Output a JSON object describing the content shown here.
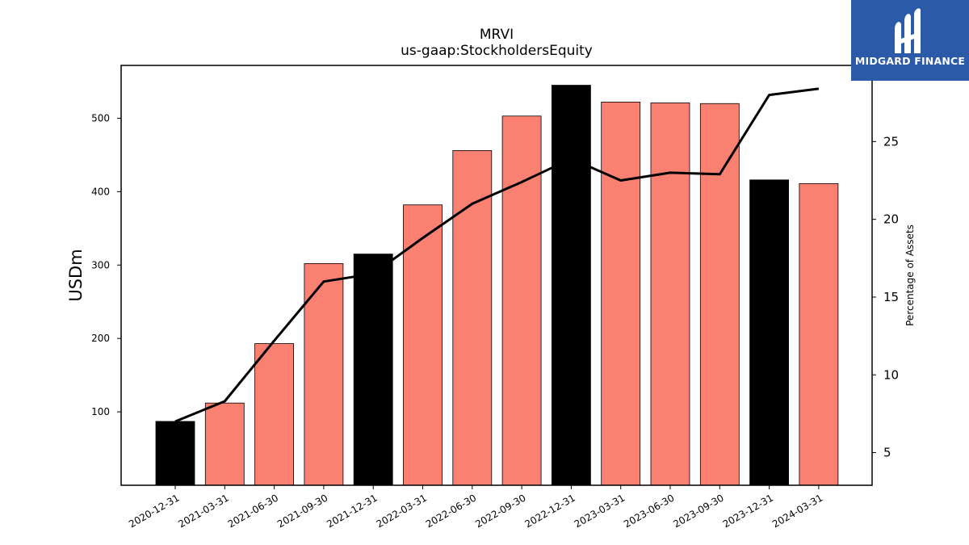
{
  "chart_data": {
    "type": "bar",
    "title": "MRVI",
    "subtitle": "us-gaap:StockholdersEquity",
    "ylabel": "USDm",
    "y2label": "Percentage of Assets",
    "categories": [
      "2020-12-31",
      "2021-03-31",
      "2021-06-30",
      "2021-09-30",
      "2021-12-31",
      "2022-03-31",
      "2022-06-30",
      "2022-09-30",
      "2022-12-31",
      "2023-03-31",
      "2023-06-30",
      "2023-09-30",
      "2023-12-31",
      "2024-03-31"
    ],
    "series": [
      {
        "type": "bar",
        "values": [
          87,
          112,
          193,
          302,
          315,
          382,
          456,
          503,
          545,
          522,
          521,
          520,
          416,
          411
        ],
        "colors": [
          "#000000",
          "#fa8072",
          "#fa8072",
          "#fa8072",
          "#000000",
          "#fa8072",
          "#fa8072",
          "#fa8072",
          "#000000",
          "#fa8072",
          "#fa8072",
          "#fa8072",
          "#000000",
          "#fa8072"
        ]
      },
      {
        "type": "line",
        "axis": "right",
        "values": [
          7.0,
          8.3,
          12.2,
          16.0,
          16.5,
          18.8,
          21.0,
          22.4,
          23.9,
          22.5,
          23.0,
          22.9,
          28.0,
          28.4
        ],
        "color": "#000000"
      }
    ],
    "ylim": [
      0,
      572
    ],
    "y2lim": [
      2.9,
      29.9
    ],
    "yticks": [
      100,
      200,
      300,
      400,
      500
    ],
    "y2ticks": [
      5,
      10,
      15,
      20,
      25
    ]
  },
  "logo": {
    "text": "MIDGARD FINANCE",
    "icon": "midgard-logo-icon",
    "color": "#2a5aa8"
  }
}
